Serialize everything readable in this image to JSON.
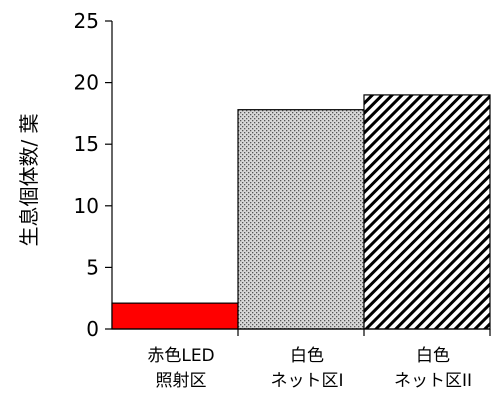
{
  "chart_data": {
    "type": "bar",
    "title": "",
    "xlabel": "",
    "ylabel": "生息個体数/ 葉",
    "ylim": [
      0,
      25
    ],
    "yticks": [
      "0",
      "5",
      "10",
      "15",
      "20",
      "25"
    ],
    "grid": false,
    "categories": [
      [
        "赤色LED",
        "照射区"
      ],
      [
        "白色",
        "ネット区I"
      ],
      [
        "白色",
        "ネット区II"
      ]
    ],
    "values": [
      2.1,
      17.8,
      19.0
    ],
    "fills": [
      "solid-red",
      "fine-gray-dots",
      "diagonal-stripes"
    ],
    "colors": {
      "red_bar": "#ff0000",
      "axis": "#000000"
    }
  }
}
